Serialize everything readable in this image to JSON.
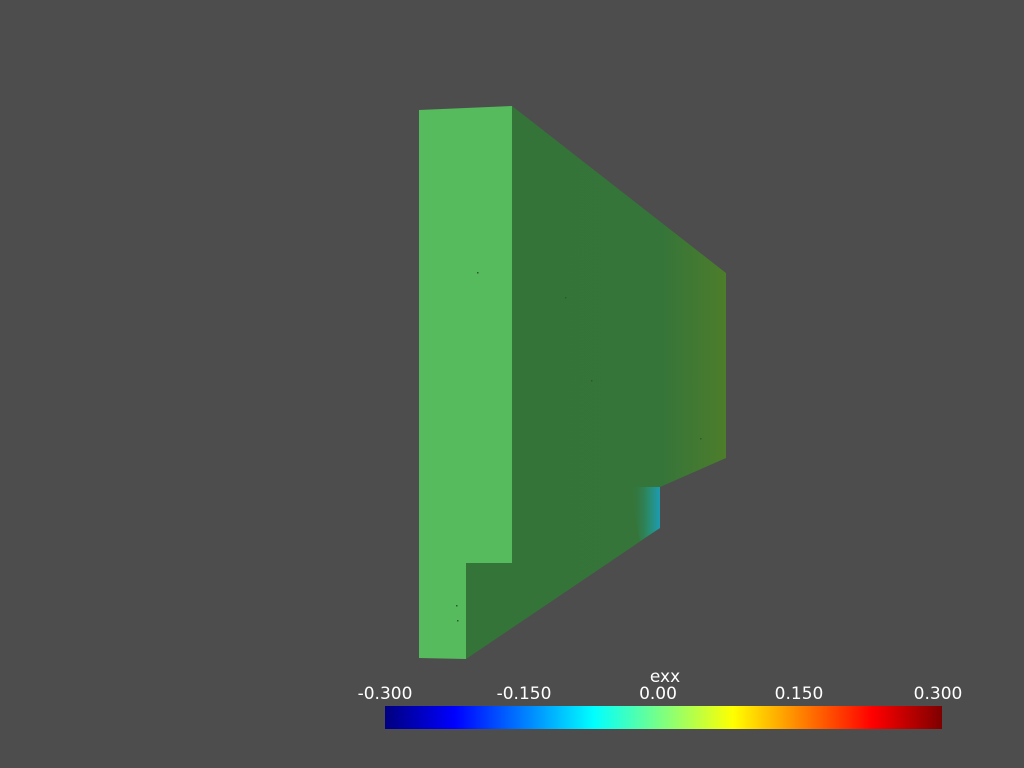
{
  "scalar_bar": {
    "title": "exx",
    "ticks": [
      "-0.300",
      "-0.150",
      "0.00",
      "0.150",
      "0.300"
    ],
    "colormap": [
      "#00007f",
      "#0000ff",
      "#007fff",
      "#00ffff",
      "#7fff7f",
      "#ffff00",
      "#ff7f00",
      "#ff0000",
      "#7f0000"
    ]
  },
  "scene": {
    "background": "#4d4d4d",
    "front_face_color": "#55bb5d",
    "side_face_color": "#347439",
    "side_face_tint_color": "#4c7d2a",
    "notch_accent_color": "#1d9bb0"
  }
}
